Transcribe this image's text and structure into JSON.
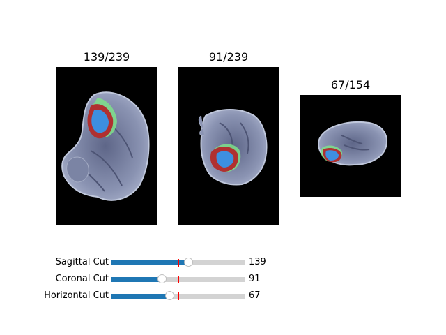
{
  "views": [
    {
      "title": "139/239",
      "name": "sagittal"
    },
    {
      "title": "91/239",
      "name": "coronal"
    },
    {
      "title": "67/154",
      "name": "horizontal"
    }
  ],
  "sliders": [
    {
      "label": "Sagittal Cut",
      "value": "139",
      "fraction": 0.58,
      "initial_fraction": 0.5
    },
    {
      "label": "Coronal Cut",
      "value": "91",
      "fraction": 0.38,
      "initial_fraction": 0.5
    },
    {
      "label": "Horizontal Cut",
      "value": "67",
      "fraction": 0.435,
      "initial_fraction": 0.5
    }
  ],
  "colors": {
    "slider_fill": "#1f77b4",
    "slider_track": "#d3d3d3",
    "initial_marker": "#ff0000",
    "panel_background": "#000000",
    "brain_tissue": "#9aa3be",
    "edema": "#7fe08a",
    "enhancing_tumor": "#b03030",
    "necrotic_core": "#3d8fe0"
  }
}
